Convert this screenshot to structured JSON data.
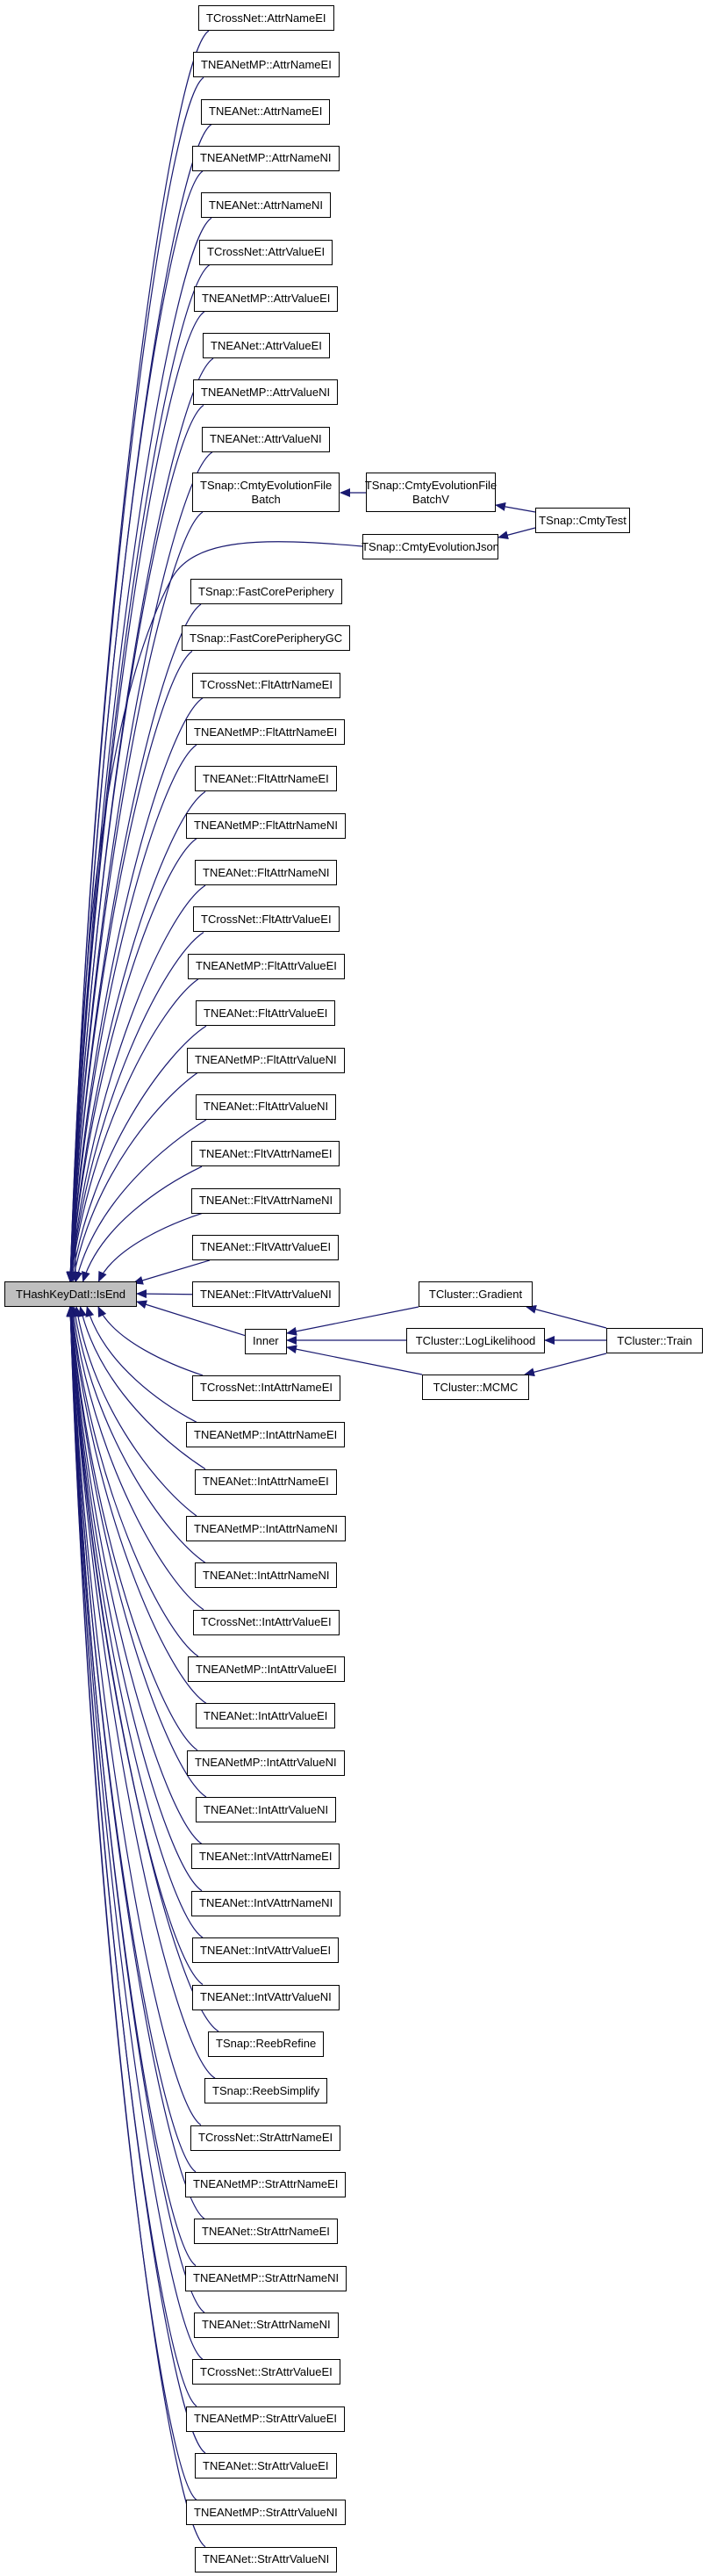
{
  "graph": {
    "edge_color": "#191970",
    "focus_fill": "#bfbfbf",
    "focus": {
      "lines": [
        "THashKeyDatI::IsEnd"
      ]
    },
    "callers": [
      {
        "lines": [
          "TCrossNet::AttrNameEI"
        ]
      },
      {
        "lines": [
          "TNEANetMP::AttrNameEI"
        ]
      },
      {
        "lines": [
          "TNEANet::AttrNameEI"
        ]
      },
      {
        "lines": [
          "TNEANetMP::AttrNameNI"
        ]
      },
      {
        "lines": [
          "TNEANet::AttrNameNI"
        ]
      },
      {
        "lines": [
          "TCrossNet::AttrValueEI"
        ]
      },
      {
        "lines": [
          "TNEANetMP::AttrValueEI"
        ]
      },
      {
        "lines": [
          "TNEANet::AttrValueEI"
        ]
      },
      {
        "lines": [
          "TNEANetMP::AttrValueNI"
        ]
      },
      {
        "lines": [
          "TNEANet::AttrValueNI"
        ]
      },
      {
        "lines": [
          "TSnap::CmtyEvolutionFile",
          "Batch"
        ]
      },
      {
        "lines": [
          "TSnap::FastCorePeriphery"
        ]
      },
      {
        "lines": [
          "TSnap::FastCorePeripheryGC"
        ]
      },
      {
        "lines": [
          "TCrossNet::FltAttrNameEI"
        ]
      },
      {
        "lines": [
          "TNEANetMP::FltAttrNameEI"
        ]
      },
      {
        "lines": [
          "TNEANet::FltAttrNameEI"
        ]
      },
      {
        "lines": [
          "TNEANetMP::FltAttrNameNI"
        ]
      },
      {
        "lines": [
          "TNEANet::FltAttrNameNI"
        ]
      },
      {
        "lines": [
          "TCrossNet::FltAttrValueEI"
        ]
      },
      {
        "lines": [
          "TNEANetMP::FltAttrValueEI"
        ]
      },
      {
        "lines": [
          "TNEANet::FltAttrValueEI"
        ]
      },
      {
        "lines": [
          "TNEANetMP::FltAttrValueNI"
        ]
      },
      {
        "lines": [
          "TNEANet::FltAttrValueNI"
        ]
      },
      {
        "lines": [
          "TNEANet::FltVAttrNameEI"
        ]
      },
      {
        "lines": [
          "TNEANet::FltVAttrNameNI"
        ]
      },
      {
        "lines": [
          "TNEANet::FltVAttrValueEI"
        ]
      },
      {
        "lines": [
          "TNEANet::FltVAttrValueNI"
        ]
      },
      {
        "lines": [
          "Inner"
        ]
      },
      {
        "lines": [
          "TCrossNet::IntAttrNameEI"
        ]
      },
      {
        "lines": [
          "TNEANetMP::IntAttrNameEI"
        ]
      },
      {
        "lines": [
          "TNEANet::IntAttrNameEI"
        ]
      },
      {
        "lines": [
          "TNEANetMP::IntAttrNameNI"
        ]
      },
      {
        "lines": [
          "TNEANet::IntAttrNameNI"
        ]
      },
      {
        "lines": [
          "TCrossNet::IntAttrValueEI"
        ]
      },
      {
        "lines": [
          "TNEANetMP::IntAttrValueEI"
        ]
      },
      {
        "lines": [
          "TNEANet::IntAttrValueEI"
        ]
      },
      {
        "lines": [
          "TNEANetMP::IntAttrValueNI"
        ]
      },
      {
        "lines": [
          "TNEANet::IntAttrValueNI"
        ]
      },
      {
        "lines": [
          "TNEANet::IntVAttrNameEI"
        ]
      },
      {
        "lines": [
          "TNEANet::IntVAttrNameNI"
        ]
      },
      {
        "lines": [
          "TNEANet::IntVAttrValueEI"
        ]
      },
      {
        "lines": [
          "TNEANet::IntVAttrValueNI"
        ]
      },
      {
        "lines": [
          "TSnap::ReebRefine"
        ]
      },
      {
        "lines": [
          "TSnap::ReebSimplify"
        ]
      },
      {
        "lines": [
          "TCrossNet::StrAttrNameEI"
        ]
      },
      {
        "lines": [
          "TNEANetMP::StrAttrNameEI"
        ]
      },
      {
        "lines": [
          "TNEANet::StrAttrNameEI"
        ]
      },
      {
        "lines": [
          "TNEANetMP::StrAttrNameNI"
        ]
      },
      {
        "lines": [
          "TNEANet::StrAttrNameNI"
        ]
      },
      {
        "lines": [
          "TCrossNet::StrAttrValueEI"
        ]
      },
      {
        "lines": [
          "TNEANetMP::StrAttrValueEI"
        ]
      },
      {
        "lines": [
          "TNEANet::StrAttrValueEI"
        ]
      },
      {
        "lines": [
          "TNEANetMP::StrAttrValueNI"
        ]
      },
      {
        "lines": [
          "TNEANet::StrAttrValueNI"
        ]
      }
    ],
    "others": {
      "fileBatchV": {
        "lines": [
          "TSnap::CmtyEvolutionFile",
          "BatchV"
        ]
      },
      "cmtyJson": {
        "lines": [
          "TSnap::CmtyEvolutionJson"
        ]
      },
      "cmtyTest": {
        "lines": [
          "TSnap::CmtyTest"
        ]
      },
      "gradient": {
        "lines": [
          "TCluster::Gradient"
        ]
      },
      "logLikelihood": {
        "lines": [
          "TCluster::LogLikelihood"
        ]
      },
      "mcmc": {
        "lines": [
          "TCluster::MCMC"
        ]
      },
      "train": {
        "lines": [
          "TCluster::Train"
        ]
      }
    },
    "extra_edges": [
      {
        "from": "cmtyJson",
        "to": "focus"
      },
      {
        "from": "fileBatchV",
        "to": "caller-10"
      },
      {
        "from": "cmtyTest",
        "to": "fileBatchV"
      },
      {
        "from": "cmtyTest",
        "to": "cmtyJson"
      },
      {
        "from": "gradient",
        "to": "caller-27"
      },
      {
        "from": "logLikelihood",
        "to": "caller-27"
      },
      {
        "from": "mcmc",
        "to": "caller-27"
      },
      {
        "from": "train",
        "to": "gradient"
      },
      {
        "from": "train",
        "to": "logLikelihood"
      },
      {
        "from": "train",
        "to": "mcmc"
      }
    ]
  }
}
